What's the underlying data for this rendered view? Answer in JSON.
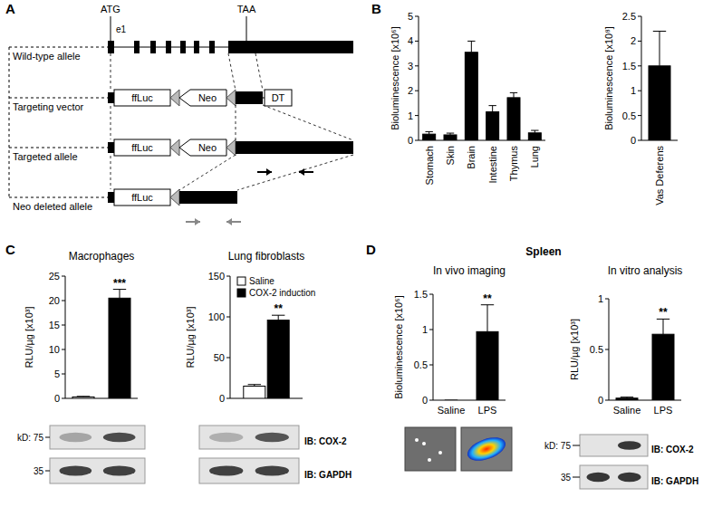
{
  "panel_labels": [
    "A",
    "B",
    "C",
    "D"
  ],
  "group_titles": [
    "Spleen"
  ],
  "diagram": {
    "start_codon": "ATG",
    "stop_codon": "TAA",
    "exon_label": "e1",
    "rows": [
      {
        "label": "Wild-type allele"
      },
      {
        "label": "Targeting vector",
        "elements": [
          "ffLuc",
          "Neo",
          "DT"
        ]
      },
      {
        "label": "Targeted allele",
        "elements": [
          "ffLuc",
          "Neo"
        ]
      },
      {
        "label": "Neo deleted allele",
        "elements": [
          "ffLuc"
        ]
      }
    ]
  },
  "blots": [
    {
      "kd_labels": [
        "kD: 75",
        "35"
      ]
    },
    {
      "antibodies": [
        "IB: COX-2",
        "IB: GAPDH"
      ]
    },
    {
      "kd_labels": [
        "kD: 75",
        "35"
      ],
      "antibodies": [
        "IB: COX-2",
        "IB: GAPDH"
      ]
    }
  ],
  "chart_data": [
    {
      "type": "bar",
      "ylabel": "Bioluminescence [x10⁶]",
      "categories": [
        "Stomach",
        "Skin",
        "Brain",
        "Intestine",
        "Thymus",
        "Lung"
      ],
      "values": [
        0.25,
        0.22,
        3.55,
        1.15,
        1.72,
        0.3
      ],
      "errors": [
        0.1,
        0.07,
        0.45,
        0.25,
        0.2,
        0.1
      ],
      "color": "#000000",
      "ylim": [
        0,
        5
      ],
      "yticks": [
        0,
        1,
        2,
        3,
        4,
        5
      ]
    },
    {
      "type": "bar",
      "ylabel": "Bioluminescence [x10⁸]",
      "categories": [
        "Vas Deferens"
      ],
      "values": [
        1.5
      ],
      "errors": [
        0.7
      ],
      "color": "#000000",
      "ylim": [
        0,
        2.5
      ],
      "yticks": [
        0,
        0.5,
        1,
        1.5,
        2,
        2.5
      ]
    },
    {
      "type": "bar",
      "title": "Macrophages",
      "ylabel": "RLU/µg [x10³]",
      "categories": [
        null,
        null
      ],
      "values": [
        0.3,
        20.5
      ],
      "errors": [
        0.1,
        1.8
      ],
      "colors": [
        "#ffffff",
        "#000000"
      ],
      "ylim": [
        0,
        25
      ],
      "yticks": [
        0,
        5,
        10,
        15,
        20,
        25
      ],
      "annotations": [
        {
          "text": "***",
          "index": 1
        }
      ]
    },
    {
      "type": "bar",
      "title": "Lung fibroblasts",
      "ylabel": "RLU/µg [x10³]",
      "categories": [
        null
      ],
      "series": [
        {
          "name": "Saline",
          "color": "#ffffff",
          "values": [
            15
          ],
          "errors": [
            2
          ]
        },
        {
          "name": "COX-2 induction",
          "color": "#000000",
          "values": [
            96
          ],
          "errors": [
            6
          ]
        }
      ],
      "legend": "upper left",
      "ylim": [
        0,
        150
      ],
      "yticks": [
        0,
        50,
        100,
        150
      ],
      "annotations": [
        {
          "text": "**",
          "series": 1,
          "index": 0
        }
      ]
    },
    {
      "type": "bar",
      "title": "In vivo imaging",
      "ylabel": "Bioluminescence [x10⁶]",
      "categories": [
        "Saline",
        "LPS"
      ],
      "values": [
        0,
        0.97
      ],
      "errors": [
        0,
        0.38
      ],
      "color": "#000000",
      "ylim": [
        0,
        1.5
      ],
      "yticks": [
        0,
        0.5,
        1,
        1.5
      ],
      "annotations": [
        {
          "text": "**",
          "index": 1
        }
      ]
    },
    {
      "type": "bar",
      "title": "In vitro analysis",
      "ylabel": "RLU/µg [x10³]",
      "categories": [
        "Saline",
        "LPS"
      ],
      "values": [
        0.02,
        0.65
      ],
      "errors": [
        0.01,
        0.15
      ],
      "color": "#000000",
      "ylim": [
        0,
        1
      ],
      "yticks": [
        0,
        0.5,
        1
      ],
      "annotations": [
        {
          "text": "**",
          "index": 1
        }
      ]
    }
  ]
}
